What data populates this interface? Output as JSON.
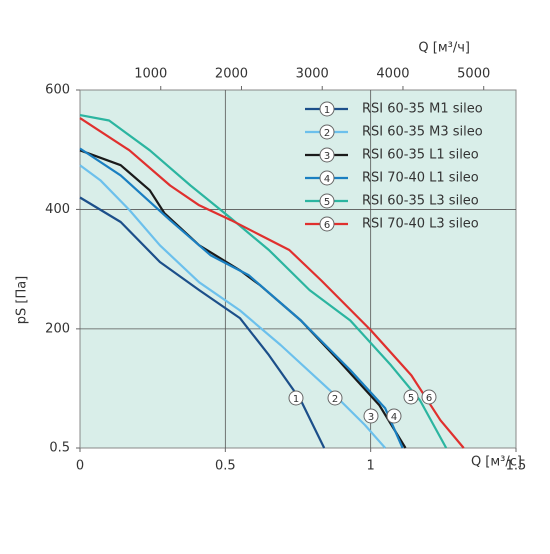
{
  "chart_data": {
    "type": "line",
    "xlabel": "Q [м³/с]",
    "ylabel": "pS [Па]",
    "x2label": "Q [м³/ч]",
    "xlim": [
      0,
      1.5
    ],
    "xticks": [
      0,
      0.5,
      1,
      1.5
    ],
    "x2lim": [
      0,
      5400
    ],
    "x2ticks": [
      1000,
      2000,
      3000,
      4000,
      5000
    ],
    "ylim": [
      0.5,
      600
    ],
    "yticks": [
      0.5,
      200,
      400,
      600
    ],
    "grid": true,
    "legend": "upper right",
    "series": [
      {
        "name": "RSI 60-35 M1 sileo",
        "marker": "1",
        "color": "#1c4f8a",
        "x": [
          0,
          0.14,
          0.275,
          0.41,
          0.55,
          0.65,
          0.76,
          0.84
        ],
        "values": [
          420,
          379,
          312,
          265,
          218,
          156,
          80,
          0.5
        ]
      },
      {
        "name": "RSI 60-35 M3 sileo",
        "marker": "2",
        "color": "#6cc0ec",
        "x": [
          0,
          0.07,
          0.17,
          0.275,
          0.41,
          0.55,
          0.69,
          0.86,
          0.98,
          1.05
        ],
        "values": [
          474,
          449,
          399,
          340,
          278,
          231,
          173,
          97,
          39,
          0.5
        ]
      },
      {
        "name": "RSI 60-35 L1 sileo",
        "marker": "3",
        "color": "#1a1a1a",
        "x": [
          0,
          0.14,
          0.24,
          0.29,
          0.41,
          0.55,
          0.62,
          0.76,
          0.89,
          1.03,
          1.12
        ],
        "values": [
          499,
          474,
          432,
          394,
          340,
          298,
          273,
          214,
          147,
          72,
          0.5
        ]
      },
      {
        "name": "RSI 70-40 L1 sileo",
        "marker": "4",
        "color": "#1a7fc1",
        "x": [
          0,
          0.14,
          0.31,
          0.45,
          0.58,
          0.76,
          0.93,
          1.05,
          1.11
        ],
        "values": [
          502,
          457,
          382,
          323,
          290,
          214,
          131,
          67,
          0.5
        ]
      },
      {
        "name": "RSI 60-35 L3 sileo",
        "marker": "5",
        "color": "#2bb5a0",
        "x": [
          0,
          0.1,
          0.24,
          0.38,
          0.52,
          0.65,
          0.79,
          0.93,
          1.07,
          1.17,
          1.26
        ],
        "values": [
          558,
          549,
          499,
          440,
          385,
          332,
          265,
          214,
          139,
          80,
          0.5
        ]
      },
      {
        "name": "RSI 70-40 L3 sileo",
        "marker": "6",
        "color": "#e0302e",
        "x": [
          0,
          0.17,
          0.31,
          0.41,
          0.52,
          0.62,
          0.72,
          0.83,
          1.0,
          1.14,
          1.24,
          1.32
        ],
        "values": [
          553,
          499,
          440,
          407,
          382,
          357,
          332,
          281,
          198,
          122,
          47,
          0.5
        ]
      }
    ]
  }
}
